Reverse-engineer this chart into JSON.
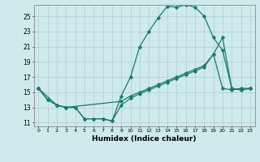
{
  "xlabel": "Humidex (Indice chaleur)",
  "bg_color": "#ceeaea",
  "line_color": "#1a7a6e",
  "grid_color": "#aed0d0",
  "xlim": [
    -0.5,
    23.5
  ],
  "ylim": [
    10.5,
    26.5
  ],
  "xticks": [
    0,
    1,
    2,
    3,
    4,
    5,
    6,
    7,
    8,
    9,
    10,
    11,
    12,
    13,
    14,
    15,
    16,
    17,
    18,
    19,
    20,
    21,
    22,
    23
  ],
  "yticks": [
    11,
    13,
    15,
    17,
    19,
    21,
    23,
    25
  ],
  "line1_x": [
    0,
    1,
    2,
    3,
    4,
    5,
    6,
    7,
    8,
    9,
    10,
    11,
    12,
    13,
    14,
    15,
    16,
    17,
    18,
    19,
    20,
    21,
    22,
    23
  ],
  "line1_y": [
    15.5,
    14.0,
    13.3,
    13.0,
    13.0,
    11.5,
    11.5,
    11.5,
    11.2,
    14.5,
    17.0,
    21.0,
    23.0,
    24.8,
    26.3,
    26.2,
    26.5,
    26.2,
    25.0,
    22.2,
    20.5,
    15.5,
    15.3,
    15.5
  ],
  "line2_x": [
    0,
    1,
    2,
    3,
    4,
    5,
    6,
    7,
    8,
    9,
    10,
    11,
    12,
    13,
    14,
    15,
    16,
    17,
    18,
    19,
    20,
    21,
    22,
    23
  ],
  "line2_y": [
    15.5,
    14.0,
    13.3,
    13.0,
    13.0,
    11.5,
    11.5,
    11.5,
    11.2,
    13.3,
    14.2,
    14.8,
    15.3,
    15.8,
    16.3,
    16.8,
    17.3,
    17.8,
    18.3,
    20.0,
    15.5,
    15.3,
    15.5,
    15.5
  ],
  "line3_x": [
    0,
    2,
    3,
    9,
    10,
    11,
    12,
    13,
    14,
    15,
    16,
    17,
    18,
    19,
    20,
    21,
    22,
    23
  ],
  "line3_y": [
    15.5,
    13.3,
    13.0,
    13.8,
    14.5,
    15.0,
    15.5,
    16.0,
    16.5,
    17.0,
    17.5,
    18.0,
    18.5,
    20.0,
    22.2,
    15.5,
    15.3,
    15.5
  ]
}
